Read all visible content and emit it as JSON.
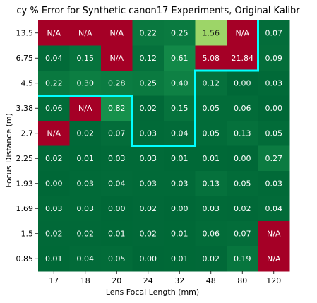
{
  "chart_data": {
    "type": "heatmap",
    "title": "cy % Error for Synthetic canon17 Experiments, Original Kalibr",
    "xlabel": "Lens Focal Length (mm)",
    "ylabel": "Focus Distance (m)",
    "x_categories": [
      "17",
      "18",
      "20",
      "24",
      "32",
      "48",
      "80",
      "120"
    ],
    "y_categories": [
      "13.5",
      "6.75",
      "4.5",
      "3.38",
      "2.7",
      "2.25",
      "1.93",
      "1.69",
      "1.5",
      "0.85"
    ],
    "na_label": "N/A",
    "values": [
      [
        "N/A",
        "N/A",
        "N/A",
        "0.22",
        "0.25",
        "1.56",
        "N/A",
        "0.07"
      ],
      [
        "0.04",
        "0.15",
        "N/A",
        "0.12",
        "0.61",
        "5.08",
        "21.84",
        "0.09"
      ],
      [
        "0.22",
        "0.30",
        "0.28",
        "0.25",
        "0.40",
        "0.12",
        "0.00",
        "0.03"
      ],
      [
        "0.06",
        "N/A",
        "0.82",
        "0.02",
        "0.15",
        "0.05",
        "0.06",
        "0.00"
      ],
      [
        "N/A",
        "0.02",
        "0.07",
        "0.03",
        "0.04",
        "0.05",
        "0.13",
        "0.05"
      ],
      [
        "0.02",
        "0.01",
        "0.03",
        "0.03",
        "0.01",
        "0.01",
        "0.00",
        "0.27"
      ],
      [
        "0.00",
        "0.03",
        "0.04",
        "0.03",
        "0.03",
        "0.13",
        "0.05",
        "0.03"
      ],
      [
        "0.03",
        "0.03",
        "0.00",
        "0.02",
        "0.00",
        "0.03",
        "0.02",
        "0.04"
      ],
      [
        "0.02",
        "0.02",
        "0.01",
        "0.02",
        "0.01",
        "0.06",
        "0.07",
        "N/A"
      ],
      [
        "0.01",
        "0.04",
        "0.05",
        "0.00",
        "0.01",
        "0.02",
        "0.19",
        "N/A"
      ]
    ],
    "boundary_step_cols": [
      3,
      3,
      3,
      5,
      5,
      8,
      8,
      8
    ],
    "colors": {
      "na": "#a50026",
      "green_dark": "#006837",
      "green_mid": "#1a9850",
      "green_light": "#a6d96a",
      "boundary": "#00ffff"
    },
    "grid": false,
    "legend": "none"
  }
}
